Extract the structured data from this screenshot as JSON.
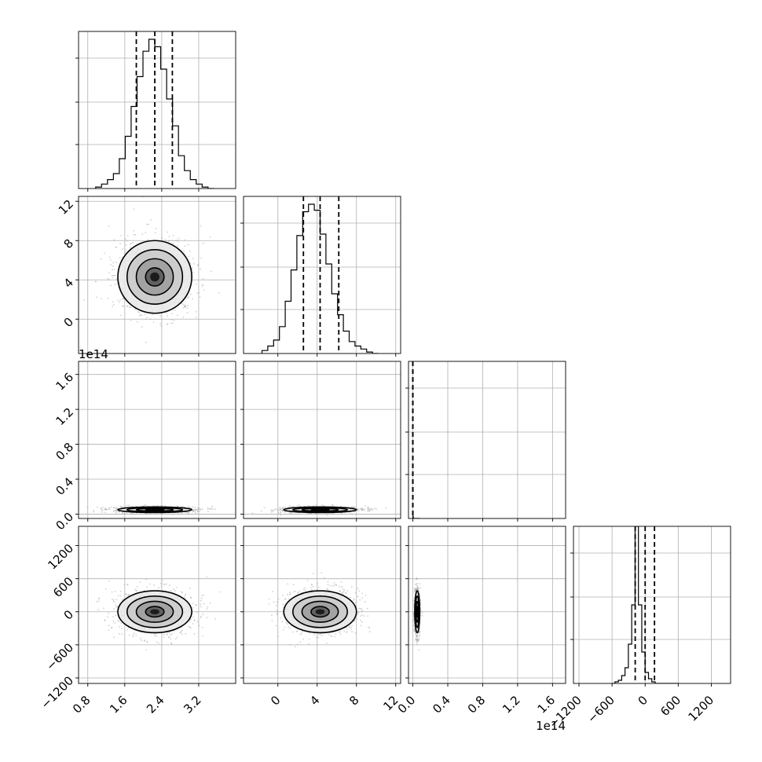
{
  "chart_data": {
    "type": "corner",
    "parameters": [
      {
        "index": 0,
        "range": [
          0.6,
          4.0
        ],
        "ticks": [
          0.8,
          1.6,
          2.4,
          3.2
        ],
        "tick_labels": [
          "0.8",
          "1.6",
          "2.4",
          "3.2"
        ],
        "median": 2.25,
        "q16": 1.85,
        "q84": 2.63,
        "peak": 2.25,
        "std": 0.4,
        "fill": 0.95
      },
      {
        "index": 1,
        "range": [
          -3.5,
          12.5
        ],
        "ticks": [
          0,
          4,
          8,
          12
        ],
        "tick_labels": [
          "0",
          "4",
          "8",
          "12"
        ],
        "median": 4.3,
        "q16": 2.6,
        "q84": 6.2,
        "peak": 4.3,
        "std": 1.85,
        "fill": 0.95
      },
      {
        "index": 2,
        "range": [
          -0.05,
          1.75
        ],
        "ticks": [
          0.0,
          0.4,
          0.8,
          1.2,
          1.6
        ],
        "tick_labels": [
          "0.0",
          "0.4",
          "0.8",
          "1.2",
          "1.6"
        ],
        "median": 0.0,
        "q16": 0.0,
        "q84": 0.0,
        "peak": 0.05,
        "std": 0.03,
        "fill": 0.015,
        "offset_text": "1e14"
      },
      {
        "index": 3,
        "range": [
          -1300,
          1550
        ],
        "ticks": [
          -1200,
          -600,
          0,
          600,
          1200
        ],
        "tick_labels": [
          "−1200",
          "−600",
          "0",
          "600",
          "1200"
        ],
        "median": 0,
        "q16": -180,
        "q84": 170,
        "peak": 0,
        "std": 190,
        "fill": 1.0
      }
    ],
    "histograms": [
      {
        "param": 0,
        "bins": 20,
        "counts": [
          1,
          3,
          6,
          10,
          20,
          35,
          55,
          75,
          92,
          100,
          95,
          80,
          60,
          42,
          22,
          12,
          6,
          3,
          1,
          0
        ]
      },
      {
        "param": 1,
        "bins": 20,
        "counts": [
          2,
          5,
          9,
          18,
          35,
          56,
          79,
          95,
          100,
          96,
          80,
          60,
          40,
          26,
          15,
          8,
          5,
          3,
          1,
          0
        ]
      },
      {
        "param": 2,
        "bins": 20,
        "counts": [
          100,
          0,
          0,
          0,
          0,
          0,
          0,
          0,
          0,
          0,
          0,
          0,
          0,
          0,
          0,
          0,
          0,
          0,
          0,
          0
        ]
      },
      {
        "param": 3,
        "bins": 20,
        "counts": [
          0,
          1,
          2,
          5,
          10,
          25,
          50,
          100,
          50,
          20,
          7,
          3,
          1,
          0,
          0,
          0,
          0,
          0,
          0,
          0
        ]
      }
    ],
    "panels_2d": [
      {
        "x": 0,
        "y": 1
      },
      {
        "x": 0,
        "y": 2
      },
      {
        "x": 1,
        "y": 2
      },
      {
        "x": 0,
        "y": 3
      },
      {
        "x": 1,
        "y": 3
      },
      {
        "x": 2,
        "y": 3
      }
    ],
    "contour_levels_sigma": [
      0.5,
      1.0,
      1.5,
      2.0
    ],
    "quantile_lines": "dashed",
    "grid": true,
    "line_color": "#000000",
    "point_color": "#9a9a9a",
    "grid_color": "#b0b0b0"
  }
}
